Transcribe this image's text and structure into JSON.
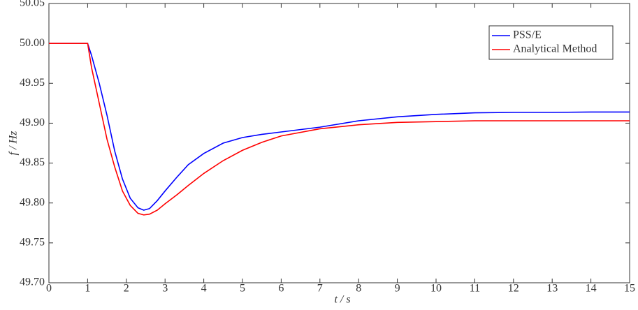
{
  "chart_data": {
    "type": "line",
    "x": [
      0,
      1,
      1.1,
      1.3,
      1.5,
      1.7,
      1.9,
      2.1,
      2.3,
      2.45,
      2.6,
      2.8,
      3,
      3.3,
      3.6,
      4,
      4.5,
      5,
      5.5,
      6,
      7,
      8,
      9,
      10,
      11,
      12,
      13,
      14,
      15
    ],
    "series": [
      {
        "name": "PSS/E",
        "color": "#0000ff",
        "values": [
          50.0,
          50.0,
          49.985,
          49.95,
          49.91,
          49.865,
          49.83,
          49.806,
          49.794,
          49.791,
          49.793,
          49.803,
          49.815,
          49.832,
          49.848,
          49.862,
          49.875,
          49.882,
          49.886,
          49.889,
          49.895,
          49.903,
          49.908,
          49.911,
          49.913,
          49.9135,
          49.9135,
          49.914,
          49.914
        ]
      },
      {
        "name": "Analytical Method",
        "color": "#ff0000",
        "values": [
          50.0,
          50.0,
          49.97,
          49.925,
          49.88,
          49.845,
          49.815,
          49.797,
          49.787,
          49.785,
          49.786,
          49.791,
          49.799,
          49.81,
          49.822,
          49.837,
          49.853,
          49.866,
          49.876,
          49.884,
          49.893,
          49.898,
          49.901,
          49.902,
          49.903,
          49.903,
          49.903,
          49.903,
          49.903
        ]
      }
    ],
    "xlabel": "t / s",
    "ylabel": "f / Hz",
    "xlim": [
      0,
      15
    ],
    "xticks": [
      0,
      1,
      2,
      3,
      4,
      5,
      6,
      7,
      8,
      9,
      10,
      11,
      12,
      13,
      14,
      15
    ],
    "ylim": [
      49.7,
      50.05
    ],
    "yticks": [
      {
        "value": 49.7,
        "label": "49.70"
      },
      49.75,
      {
        "value": 49.8,
        "label": "49.80"
      },
      49.85,
      {
        "value": 49.9,
        "label": "49.90"
      },
      49.95,
      {
        "value": 50.0,
        "label": "50.00"
      },
      50.05
    ],
    "legend": "upper right"
  }
}
